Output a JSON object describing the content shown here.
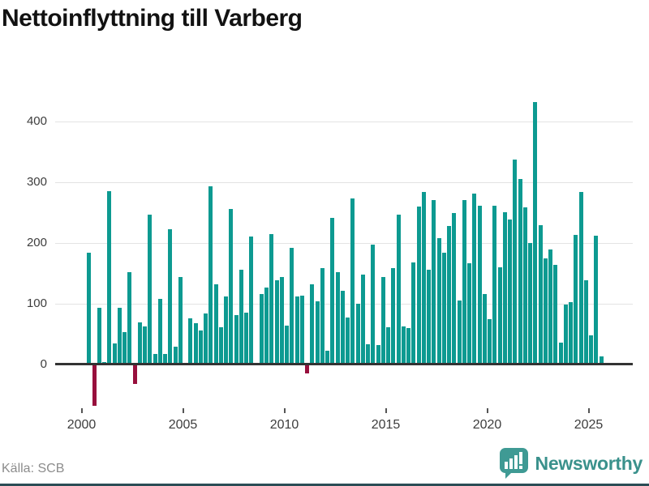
{
  "title": "Nettoinflyttning till Varberg",
  "source": "Källa: SCB",
  "branding": {
    "logo_text": "Newsworthy",
    "logo_icon": "bar-chart-speech-bubble-icon"
  },
  "colors": {
    "positive_bar": "#0d9a91",
    "negative_bar": "#98103d",
    "gridline": "#e3e3e3",
    "zero_line": "#333333",
    "axis_text": "#3d3d3d",
    "title_text": "#121212",
    "source_text": "#8c8c8c",
    "logo_teal": "#3f9a94",
    "bottom_strip": "#2b4d55"
  },
  "y_axis": {
    "ticks": [
      0,
      100,
      200,
      300,
      400
    ]
  },
  "x_axis": {
    "ticks": [
      2000,
      2005,
      2010,
      2015,
      2020,
      2025
    ]
  },
  "chart_data": {
    "type": "bar",
    "title": "Nettoinflyttning till Varberg",
    "xlabel": "",
    "ylabel": "",
    "frequency": "quarterly",
    "start_period": "2000-Q1",
    "end_period": "2025-Q3",
    "ylim": [
      -100,
      450
    ],
    "grid": "horizontal",
    "legend": "none",
    "values": [
      0,
      183,
      -68,
      93,
      3,
      285,
      34,
      93,
      53,
      151,
      -33,
      69,
      62,
      246,
      17,
      107,
      17,
      222,
      29,
      144,
      0,
      75,
      67,
      55,
      84,
      293,
      132,
      61,
      112,
      256,
      81,
      156,
      85,
      210,
      0,
      115,
      126,
      214,
      138,
      143,
      64,
      192,
      112,
      113,
      -15,
      132,
      103,
      158,
      22,
      241,
      151,
      121,
      77,
      273,
      100,
      147,
      33,
      197,
      31,
      144,
      61,
      158,
      246,
      62,
      59,
      168,
      260,
      284,
      156,
      270,
      207,
      184,
      227,
      249,
      105,
      270,
      166,
      281,
      261,
      116,
      74,
      261,
      159,
      250,
      238,
      337,
      305,
      258,
      199,
      432,
      229,
      174,
      189,
      164,
      36,
      98,
      102,
      213,
      283,
      138,
      47,
      211,
      13
    ]
  }
}
